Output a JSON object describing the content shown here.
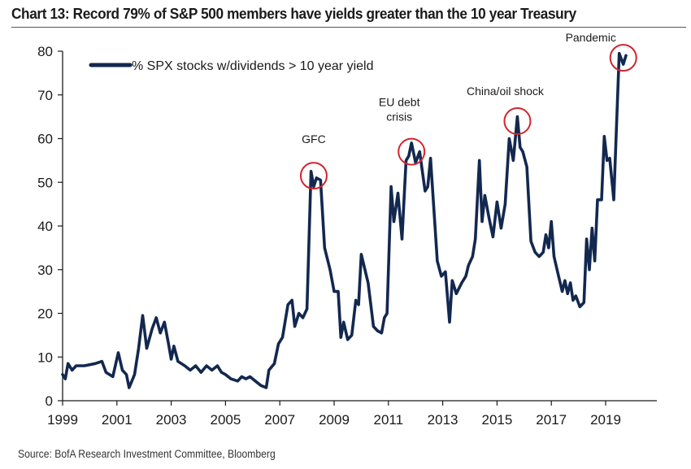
{
  "title": "Chart 13: Record 79% of S&P 500 members have yields greater than the 10 year Treasury",
  "source": "Source: BofA Research Investment Committee, Bloomberg",
  "colors": {
    "series": "#13284f",
    "annotation_circle": "#d0262e",
    "axis": "#1a1a1a"
  },
  "chart_data": {
    "type": "line",
    "title": "Chart 13: Record 79% of S&P 500 members have yields greater than the 10 year Treasury",
    "xlabel": "",
    "ylabel": "",
    "xlim": [
      1999,
      2020.6
    ],
    "ylim": [
      0,
      80
    ],
    "grid": false,
    "legend_position": "top-left",
    "x_ticks": [
      1999,
      2001,
      2003,
      2005,
      2007,
      2009,
      2011,
      2013,
      2015,
      2017,
      2019
    ],
    "x_tick_labels": [
      "1999",
      "2001",
      "2003",
      "2005",
      "2007",
      "2009",
      "2011",
      "2013",
      "2015",
      "2017",
      "2019"
    ],
    "y_ticks": [
      0,
      10,
      20,
      30,
      40,
      50,
      60,
      70,
      80
    ],
    "y_tick_labels": [
      "0",
      "10",
      "20",
      "30",
      "40",
      "50",
      "60",
      "70",
      "80"
    ],
    "series": [
      {
        "name": "% SPX stocks w/dividends > 10 year yield",
        "x": [
          1999.0,
          1999.1,
          1999.2,
          1999.35,
          1999.5,
          1999.8,
          2000.2,
          2000.45,
          2000.6,
          2000.85,
          2001.05,
          2001.2,
          2001.35,
          2001.45,
          2001.65,
          2001.8,
          2001.95,
          2002.1,
          2002.3,
          2002.45,
          2002.6,
          2002.75,
          2002.9,
          2003.0,
          2003.1,
          2003.25,
          2003.5,
          2003.7,
          2003.9,
          2004.1,
          2004.3,
          2004.5,
          2004.7,
          2004.85,
          2005.0,
          2005.2,
          2005.45,
          2005.6,
          2005.75,
          2005.9,
          2006.1,
          2006.3,
          2006.5,
          2006.6,
          2006.8,
          2006.95,
          2007.1,
          2007.3,
          2007.45,
          2007.55,
          2007.7,
          2007.85,
          2008.0,
          2008.15,
          2008.25,
          2008.35,
          2008.5,
          2008.65,
          2008.85,
          2009.0,
          2009.15,
          2009.25,
          2009.35,
          2009.5,
          2009.65,
          2009.8,
          2009.9,
          2010.0,
          2010.25,
          2010.45,
          2010.6,
          2010.75,
          2010.85,
          2010.95,
          2011.1,
          2011.2,
          2011.35,
          2011.5,
          2011.65,
          2011.75,
          2011.85,
          2012.0,
          2012.15,
          2012.35,
          2012.45,
          2012.55,
          2012.8,
          2012.95,
          2013.1,
          2013.25,
          2013.35,
          2013.5,
          2013.7,
          2013.85,
          2013.95,
          2014.1,
          2014.2,
          2014.35,
          2014.45,
          2014.55,
          2014.7,
          2014.85,
          2015.0,
          2015.15,
          2015.3,
          2015.45,
          2015.6,
          2015.75,
          2015.85,
          2015.95,
          2016.1,
          2016.25,
          2016.4,
          2016.55,
          2016.7,
          2016.8,
          2016.9,
          2017.0,
          2017.1,
          2017.25,
          2017.4,
          2017.5,
          2017.6,
          2017.7,
          2017.8,
          2017.9,
          2018.05,
          2018.2,
          2018.3,
          2018.4,
          2018.5,
          2018.6,
          2018.7,
          2018.85,
          2018.95,
          2019.05,
          2019.15,
          2019.3,
          2019.5,
          2019.65,
          2019.75
        ],
        "values": [
          6,
          5,
          8.5,
          7,
          8,
          8,
          8.5,
          9,
          6.5,
          5.5,
          11,
          7,
          6,
          3,
          6,
          12,
          19.5,
          12,
          16.5,
          19,
          15.5,
          18,
          13,
          9.5,
          12.5,
          9,
          8,
          7,
          8,
          6.5,
          8,
          7,
          8,
          6.5,
          6,
          5,
          4.5,
          5.5,
          5,
          5.5,
          4.5,
          3.5,
          3,
          7,
          8.5,
          13,
          14.5,
          22,
          23,
          17,
          20,
          19,
          21,
          52.5,
          49,
          51,
          50.5,
          35,
          30,
          25,
          25,
          14.5,
          18,
          14,
          15,
          23,
          22,
          33.5,
          27,
          17,
          16,
          15.5,
          19,
          20,
          49,
          41,
          47.5,
          37,
          55,
          56,
          59,
          54.5,
          57,
          48,
          49,
          55.5,
          32,
          28.5,
          29.5,
          18,
          27.5,
          24.5,
          27,
          28.5,
          31,
          33,
          37,
          55,
          41,
          47,
          42,
          37.5,
          45.5,
          39.5,
          45,
          60,
          55,
          65,
          58,
          57,
          53.5,
          36.5,
          34,
          33,
          34,
          38,
          35,
          41,
          33,
          29,
          25,
          27.5,
          24.5,
          27,
          23,
          24,
          21.5,
          22.5,
          37,
          30,
          39.5,
          32,
          46,
          46,
          60.5,
          55,
          55.5,
          46,
          79.5,
          77,
          79
        ]
      }
    ],
    "annotations": [
      {
        "label_lines": [
          "GFC"
        ],
        "x": 2008.25,
        "y": 51.5
      },
      {
        "label_lines": [
          "EU debt",
          "crisis"
        ],
        "x": 2011.85,
        "y": 57
      },
      {
        "label_lines": [
          "China/oil shock"
        ],
        "x": 2015.75,
        "y": 64
      },
      {
        "label_lines": [
          "Pandemic"
        ],
        "x": 2019.65,
        "y": 78.5
      }
    ]
  }
}
